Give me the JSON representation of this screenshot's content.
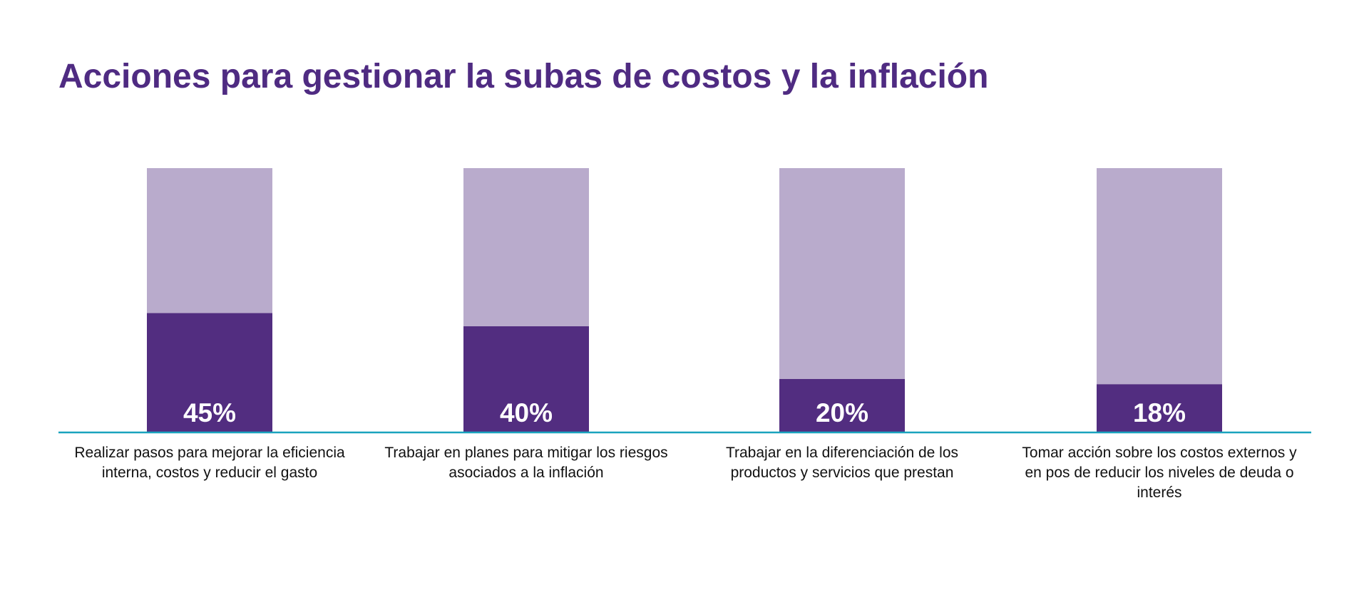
{
  "chart_data": {
    "type": "bar",
    "stacked_background": true,
    "title": "Acciones para gestionar la subas de costos y la inflación",
    "categories": [
      "Realizar pasos para mejorar la eficiencia interna, costos y reducir el gasto",
      "Trabajar en planes para mitigar los riesgos asociados a la inflación",
      "Trabajar en la diferenciación de los productos y servicios que prestan",
      "Tomar acción sobre los costos externos y en pos de reducir los niveles de deuda o interés"
    ],
    "values": [
      45,
      40,
      20,
      18
    ],
    "data_labels": [
      "45%",
      "40%",
      "20%",
      "18%"
    ],
    "ylim": [
      0,
      100
    ],
    "grid": false,
    "colors": {
      "bar": "#522d80",
      "background_bar": "#b9abcc",
      "axis": "#1aa3be",
      "title": "#4f2b82",
      "label": "#ffffff"
    }
  }
}
